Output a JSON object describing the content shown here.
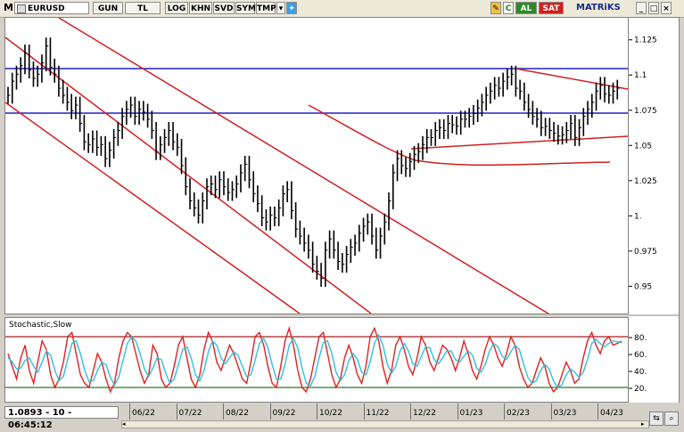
{
  "toolbar": {
    "menu_letter": "M",
    "symbol": "EURUSD",
    "buttons": [
      "GUN",
      "TL",
      "LOG",
      "KHN",
      "SVD",
      "SYM",
      "TMP"
    ],
    "trade_buttons": {
      "buy": "AL",
      "sell": "SAT"
    },
    "c_button": "C",
    "brand": "MATRiKS"
  },
  "status_readout": "1.0893 - 10 - 06:45:12",
  "oscillator": {
    "title": "Stochastic,Slow",
    "levels": [
      "80.",
      "60.",
      "40.",
      "20."
    ]
  },
  "chart_data": [
    {
      "type": "line",
      "title": "",
      "symbol": "EURUSD",
      "ylim": [
        0.93,
        1.14
      ],
      "yticks": [
        "1.125",
        "1.1",
        "1.075",
        "1.05",
        "1.025",
        "1.",
        "0.975",
        "0.95"
      ],
      "x_labels": [
        "06/22",
        "07/22",
        "08/22",
        "09/22",
        "10/22",
        "11/22",
        "12/22",
        "01/23",
        "02/23",
        "03/23",
        "04/23"
      ],
      "series": [
        {
          "values": [
            1.085,
            1.095,
            1.1,
            1.106,
            1.115,
            1.103,
            1.097,
            1.1,
            1.108,
            1.12,
            1.105,
            1.1,
            1.09,
            1.085,
            1.08,
            1.074,
            1.078,
            1.065,
            1.052,
            1.05,
            1.054,
            1.048,
            1.05,
            1.04,
            1.046,
            1.055,
            1.06,
            1.07,
            1.075,
            1.078,
            1.07,
            1.075,
            1.073,
            1.068,
            1.06,
            1.045,
            1.05,
            1.055,
            1.06,
            1.052,
            1.048,
            1.035,
            1.02,
            1.01,
            1.005,
            1.0,
            1.01,
            1.02,
            1.022,
            1.018,
            1.025,
            1.02,
            1.016,
            1.018,
            1.022,
            1.03,
            1.036,
            1.025,
            1.015,
            1.008,
            0.998,
            0.995,
            1.0,
            0.998,
            1.005,
            1.015,
            1.018,
            1.003,
            0.99,
            0.985,
            0.98,
            0.975,
            0.965,
            0.96,
            0.955,
            0.975,
            0.983,
            0.975,
            0.967,
            0.965,
            0.972,
            0.977,
            0.98,
            0.987,
            0.992,
            0.995,
            0.985,
            0.975,
            0.985,
            0.995,
            1.01,
            1.03,
            1.04,
            1.035,
            1.033,
            1.038,
            1.043,
            1.045,
            1.05,
            1.055,
            1.055,
            1.06,
            1.062,
            1.06,
            1.065,
            1.064,
            1.063,
            1.068,
            1.068,
            1.07,
            1.072,
            1.076,
            1.08,
            1.085,
            1.088,
            1.092,
            1.09,
            1.095,
            1.098,
            1.1,
            1.09,
            1.088,
            1.08,
            1.075,
            1.07,
            1.068,
            1.062,
            1.063,
            1.06,
            1.058,
            1.056,
            1.057,
            1.06,
            1.065,
            1.055,
            1.062,
            1.07,
            1.075,
            1.08,
            1.088,
            1.092,
            1.086,
            1.085,
            1.088,
            1.09
          ]
        },
        {
          "name": "",
          "values": [
            60,
            45,
            30,
            55,
            70,
            40,
            25,
            50,
            75,
            65,
            35,
            20,
            30,
            50,
            80,
            85,
            60,
            35,
            25,
            20,
            40,
            60,
            50,
            30,
            15,
            25,
            55,
            75,
            85,
            80,
            60,
            40,
            25,
            35,
            70,
            60,
            30,
            20,
            25,
            45,
            70,
            80,
            55,
            30,
            20,
            35,
            65,
            85,
            75,
            50,
            40,
            55,
            70,
            60,
            45,
            30,
            25,
            50,
            80,
            85,
            70,
            45,
            25,
            20,
            45,
            75,
            90,
            70,
            40,
            20,
            15,
            30,
            55,
            80,
            85,
            60,
            35,
            20,
            30,
            55,
            70,
            55,
            35,
            25,
            45,
            80,
            90,
            75,
            45,
            25,
            40,
            70,
            80,
            65,
            45,
            35,
            55,
            80,
            70,
            50,
            40,
            55,
            70,
            65,
            55,
            40,
            55,
            75,
            60,
            40,
            30,
            45,
            65,
            80,
            70,
            55,
            45,
            60,
            80,
            70,
            45,
            30,
            20,
            25,
            40,
            55,
            45,
            25,
            15,
            20,
            35,
            50,
            40,
            25,
            30,
            55,
            75,
            85,
            70,
            60,
            75,
            80,
            70,
            72,
            75
          ]
        },
        {
          "name": "",
          "values": [
            55,
            50,
            42,
            43,
            52,
            55,
            45,
            38,
            50,
            63,
            58,
            40,
            28,
            33,
            53,
            72,
            75,
            60,
            40,
            27,
            28,
            40,
            50,
            47,
            32,
            23,
            32,
            52,
            72,
            80,
            75,
            60,
            42,
            33,
            43,
            55,
            53,
            37,
            25,
            30,
            47,
            65,
            68,
            55,
            35,
            28,
            40,
            62,
            75,
            70,
            55,
            48,
            55,
            62,
            58,
            45,
            33,
            35,
            52,
            72,
            78,
            67,
            47,
            30,
            30,
            47,
            70,
            78,
            67,
            43,
            25,
            22,
            33,
            55,
            73,
            75,
            60,
            38,
            28,
            35,
            52,
            60,
            53,
            38,
            35,
            50,
            72,
            82,
            70,
            48,
            37,
            45,
            63,
            72,
            63,
            48,
            45,
            57,
            68,
            67,
            53,
            48,
            55,
            63,
            63,
            53,
            50,
            57,
            63,
            58,
            43,
            38,
            47,
            63,
            72,
            68,
            57,
            53,
            62,
            70,
            65,
            48,
            32,
            25,
            28,
            40,
            47,
            42,
            28,
            20,
            23,
            35,
            42,
            38,
            32,
            38,
            53,
            72,
            77,
            72,
            68,
            72,
            75,
            74,
            73
          ]
        }
      ]
    }
  ]
}
